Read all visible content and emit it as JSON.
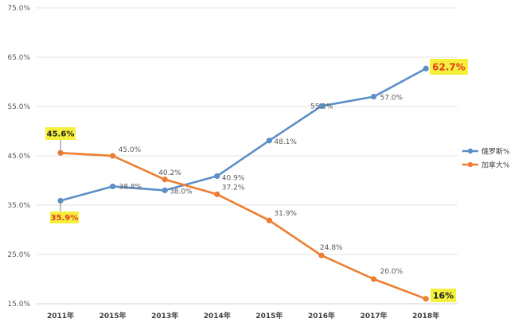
{
  "chart_data": {
    "type": "line",
    "categories": [
      "2011年",
      "2015年",
      "2013年",
      "2014年",
      "2015年",
      "2016年",
      "2017年",
      "2018年"
    ],
    "ylim": [
      15,
      75
    ],
    "yticks": [
      "15.0%",
      "25.0%",
      "35.0%",
      "45.0%",
      "55.0%",
      "65.0%",
      "75.0%"
    ],
    "grid": true,
    "legend_position": "right",
    "series": [
      {
        "name": "俄罗斯%",
        "color": "#5b8fc7",
        "values": [
          35.9,
          38.8,
          38.0,
          40.9,
          48.1,
          55.1,
          57.0,
          62.7
        ],
        "labels": [
          "35.9%",
          "38.8%",
          "38.0%",
          "40.9%",
          "48.1%",
          "55.1%",
          "57.0%",
          "62.7%"
        ]
      },
      {
        "name": "加拿大%",
        "color": "#ed7d31",
        "values": [
          45.6,
          45.0,
          40.2,
          37.2,
          31.9,
          24.8,
          20.0,
          16.0
        ],
        "labels": [
          "45.6%",
          "45.0%",
          "40.2%",
          "37.2%",
          "31.9%",
          "24.8%",
          "20.0%",
          "16%"
        ]
      }
    ],
    "highlight_fill": "#f5f03c",
    "highlight_text": "#e23b24"
  }
}
